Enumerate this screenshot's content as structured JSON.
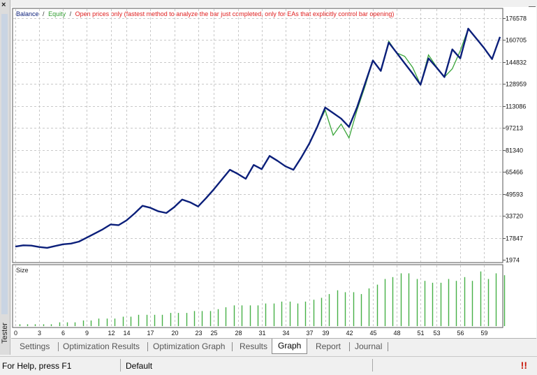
{
  "window": {
    "close_glyph": "×"
  },
  "sidebar": {
    "label": "Tester"
  },
  "legend": {
    "balance": "Balance",
    "sep1": "/",
    "equity": "Equity",
    "sep2": "/",
    "model": "Open prices only (fastest method to analyze the bar just completed, only for EAs that explicitly control bar opening)"
  },
  "subchart": {
    "label": "Size"
  },
  "tabs": [
    {
      "label": "Settings"
    },
    {
      "label": "Optimization Results"
    },
    {
      "label": "Optimization Graph"
    },
    {
      "label": "Results"
    },
    {
      "label": "Graph"
    },
    {
      "label": "Report"
    },
    {
      "label": "Journal"
    }
  ],
  "status": {
    "help": "For Help, press F1",
    "profile": "Default",
    "warn_icon": "warning-icon"
  },
  "colors": {
    "balance": "#0b1f7a",
    "equity": "#3aa53a",
    "size_bar": "#46b046",
    "grid": "#c8c8c8",
    "legend_model": "#e02020"
  },
  "chart_data": {
    "type": "line",
    "y_ticks": [
      "176578",
      "160705",
      "144832",
      "128959",
      "113086",
      "97213",
      "81340",
      "65466",
      "49593",
      "33720",
      "17847",
      "1974"
    ],
    "x_ticks": [
      "0",
      "3",
      "6",
      "9",
      "12",
      "14",
      "17",
      "20",
      "23",
      "25",
      "28",
      "31",
      "34",
      "37",
      "39",
      "42",
      "45",
      "48",
      "51",
      "53",
      "56",
      "59"
    ],
    "ylim": [
      1974,
      176578
    ],
    "xlim": [
      0,
      61
    ],
    "series": [
      {
        "name": "Balance",
        "x": [
          0,
          1,
          2,
          3,
          4,
          5,
          6,
          7,
          8,
          9,
          10,
          11,
          12,
          13,
          14,
          15,
          16,
          17,
          18,
          19,
          20,
          21,
          22,
          23,
          24,
          25,
          26,
          27,
          28,
          29,
          30,
          31,
          32,
          33,
          34,
          35,
          36,
          37,
          38,
          39,
          40,
          41,
          42,
          43,
          44,
          45,
          46,
          47,
          48,
          49,
          50,
          51,
          52,
          53,
          54,
          55,
          56,
          57,
          58,
          59,
          60,
          61
        ],
        "values": [
          11500,
          12400,
          12200,
          11200,
          10600,
          11900,
          13200,
          13700,
          15100,
          18000,
          21000,
          24000,
          27500,
          27000,
          30500,
          35500,
          41000,
          39500,
          37000,
          35800,
          40000,
          45500,
          43500,
          40500,
          46500,
          53000,
          60000,
          67000,
          64000,
          60500,
          70500,
          67500,
          77000,
          73500,
          69500,
          67000,
          76000,
          86000,
          98000,
          112000,
          108000,
          104000,
          98000,
          112000,
          129000,
          146000,
          138500,
          159000,
          151500,
          144000,
          136500,
          128500,
          147500,
          141000,
          134000,
          154000,
          147500,
          169000,
          162000,
          155000,
          147000,
          163000
        ]
      },
      {
        "name": "Equity",
        "x": [
          38,
          39,
          40,
          41,
          42,
          43,
          44,
          47,
          49,
          50,
          52,
          53,
          55,
          56
        ],
        "values": [
          98000,
          110000,
          92000,
          100000,
          90000,
          110000,
          127000,
          160000,
          149000,
          141000,
          150000,
          141500,
          140000,
          153000
        ]
      }
    ],
    "size_series": {
      "name": "Size",
      "values": [
        1,
        1,
        1,
        1,
        1,
        2,
        2,
        2,
        3,
        3,
        4,
        4,
        4,
        5,
        5,
        6,
        6,
        6,
        6,
        7,
        7,
        7,
        8,
        8,
        8,
        9,
        10,
        11,
        11,
        11,
        11,
        12,
        12,
        13,
        13,
        12,
        13,
        14,
        15,
        17,
        19,
        18,
        18,
        17,
        20,
        22,
        25,
        26,
        28,
        28,
        25,
        24,
        23,
        23,
        25,
        24,
        26,
        24,
        29,
        25,
        28,
        27
      ]
    }
  }
}
